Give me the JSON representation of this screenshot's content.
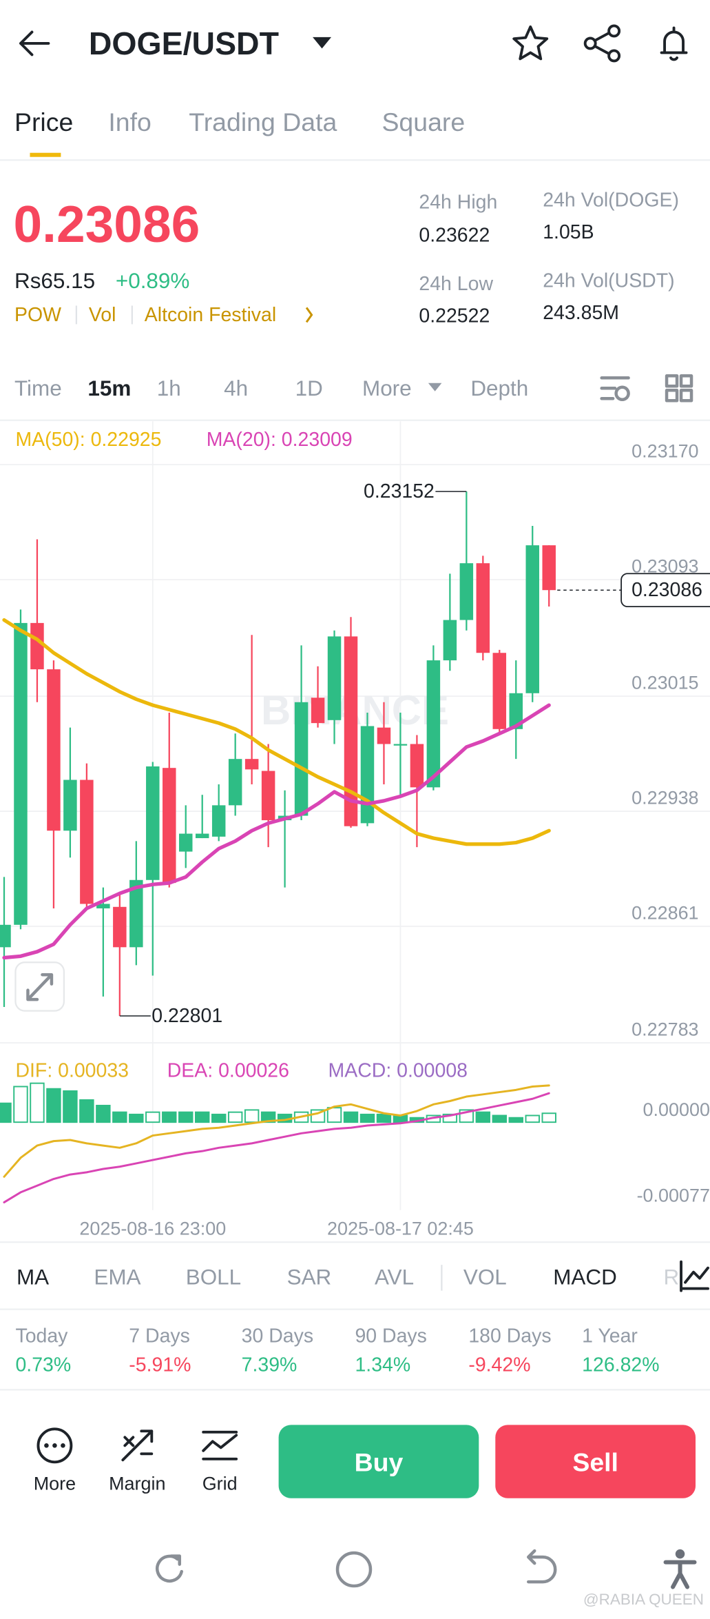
{
  "header": {
    "title": "DOGE/USDT"
  },
  "tabs": [
    {
      "label": "Price",
      "active": true
    },
    {
      "label": "Info",
      "active": false
    },
    {
      "label": "Trading Data",
      "active": false
    },
    {
      "label": "Square",
      "active": false
    }
  ],
  "price": {
    "last": 0.23086,
    "local": "Rs65.15",
    "change": "+0.89%",
    "tags": [
      "POW",
      "Vol",
      "Altcoin Festival"
    ]
  },
  "stats": [
    {
      "label": "24h High",
      "value": 0.23622
    },
    {
      "label": "24h Low",
      "value": 0.22522
    },
    {
      "label": "24h Vol(DOGE)",
      "value": "1.05B"
    },
    {
      "label": "24h Vol(USDT)",
      "value": "243.85M"
    }
  ],
  "intervals": [
    {
      "label": "Time",
      "active": false
    },
    {
      "label": "15m",
      "active": true
    },
    {
      "label": "1h",
      "active": false
    },
    {
      "label": "4h",
      "active": false
    },
    {
      "label": "1D",
      "active": false
    },
    {
      "label": "More",
      "active": false
    },
    {
      "label": "Depth",
      "active": false
    }
  ],
  "chart_watermark": "BINANCE",
  "chart_data": [
    {
      "type": "candlestick",
      "up_color": "#2ebd85",
      "down_color": "#f6465d",
      "grid": true,
      "x": [
        null,
        null,
        null,
        null,
        null,
        null,
        null,
        null,
        null,
        "2025-08-16 23:00",
        null,
        null,
        null,
        null,
        null,
        null,
        null,
        null,
        null,
        null,
        null,
        null,
        null,
        null,
        "2025-08-17 02:45",
        null,
        null,
        null,
        null,
        null,
        null,
        null,
        null,
        null
      ],
      "ylim": [
        0.22783,
        0.23199
      ],
      "yticks": [
        {
          "value": 0.2317,
          "label": "0.23170"
        },
        {
          "value": 0.23093,
          "label": "0.23093"
        },
        {
          "value": 0.23015,
          "label": "0.23015"
        },
        {
          "value": 0.22938,
          "label": "0.22938"
        },
        {
          "value": 0.22861,
          "label": "0.22861"
        },
        {
          "value": 0.22783,
          "label": "0.22783"
        }
      ],
      "open": [
        0.22847,
        0.22862,
        0.23064,
        0.23033,
        0.22925,
        0.22959,
        0.22873,
        0.22874,
        0.22847,
        0.22892,
        0.22967,
        0.22911,
        0.2292,
        0.22921,
        0.22942,
        0.22973,
        0.22965,
        0.22932,
        0.22935,
        0.23014,
        0.22999,
        0.23055,
        0.2293,
        0.22994,
        0.22982,
        0.22983,
        0.22954,
        0.23039,
        0.23066,
        0.23104,
        0.23044,
        0.22993,
        0.23017,
        0.23116
      ],
      "high": [
        0.22894,
        0.23073,
        0.2312,
        0.23039,
        0.22994,
        0.2297,
        0.22887,
        0.22883,
        0.22918,
        0.22971,
        0.23004,
        0.22942,
        0.22949,
        0.22956,
        0.2299,
        0.23056,
        0.22983,
        0.22952,
        0.23049,
        0.23035,
        0.23059,
        0.23068,
        0.23004,
        0.23011,
        0.23004,
        0.22989,
        0.23049,
        0.23097,
        0.23152,
        0.23109,
        0.23046,
        0.23039,
        0.23129,
        0.23116
      ],
      "low": [
        0.22807,
        0.22859,
        0.23011,
        0.22873,
        0.22907,
        0.22873,
        0.22814,
        0.22801,
        0.22835,
        0.22828,
        0.22887,
        0.229,
        0.2292,
        0.22918,
        0.22935,
        0.22956,
        0.22914,
        0.22887,
        0.22932,
        0.22994,
        0.22983,
        0.22927,
        0.22928,
        0.22956,
        0.22949,
        0.22914,
        0.22952,
        0.23032,
        0.23059,
        0.23039,
        0.2299,
        0.22973,
        0.23011,
        0.23075
      ],
      "close": [
        0.22862,
        0.23064,
        0.23033,
        0.22925,
        0.22959,
        0.22876,
        0.22876,
        0.22847,
        0.22892,
        0.22968,
        0.2289,
        0.22923,
        0.22923,
        0.22942,
        0.22973,
        0.22966,
        0.22932,
        0.22935,
        0.23011,
        0.22997,
        0.23055,
        0.22928,
        0.22995,
        0.22983,
        0.22983,
        0.22954,
        0.23039,
        0.23066,
        0.23104,
        0.23044,
        0.22993,
        0.23017,
        0.23116,
        0.23086
      ],
      "series": [
        {
          "name": "MA(50): 0.22925",
          "color": "#ecb80c",
          "values": [
            0.23066,
            0.23059,
            0.23053,
            0.23044,
            0.23037,
            0.2303,
            0.23024,
            0.23018,
            0.23013,
            0.23009,
            0.23006,
            0.23003,
            0.23,
            0.22997,
            0.22993,
            0.22987,
            0.22979,
            0.22973,
            0.22967,
            0.22961,
            0.22956,
            0.22951,
            0.22945,
            0.22937,
            0.2293,
            0.22923,
            0.2292,
            0.22918,
            0.22916,
            0.22916,
            0.22916,
            0.22917,
            0.2292,
            0.22925
          ]
        },
        {
          "name": "MA(20): 0.23009",
          "color": "#d944b4",
          "values": [
            0.2284,
            0.22841,
            0.22844,
            0.22849,
            0.22862,
            0.22873,
            0.22878,
            0.22883,
            0.22887,
            0.22889,
            0.2289,
            0.22894,
            0.22904,
            0.22913,
            0.22918,
            0.22925,
            0.2293,
            0.22933,
            0.22936,
            0.22943,
            0.22951,
            0.22945,
            0.22943,
            0.22945,
            0.22948,
            0.22952,
            0.22961,
            0.22971,
            0.22981,
            0.22985,
            0.2299,
            0.22995,
            0.23002,
            0.23009
          ]
        }
      ]
    },
    {
      "type": "macd",
      "grid": false,
      "ylim": [
        -0.00079,
        0.00062
      ],
      "yticks": [
        {
          "value": 0,
          "label": "0.00000"
        },
        {
          "value": -0.00077,
          "label": "-0.00077"
        }
      ],
      "series": [
        {
          "name": "DIF: 0.00033",
          "color": "#e5b422",
          "kind": "line",
          "values": [
            -0.00049,
            -0.00032,
            -0.00021,
            -0.00017,
            -0.00016,
            -0.00019,
            -0.00021,
            -0.00023,
            -0.00019,
            -0.00012,
            -0.0001,
            -8e-05,
            -6e-05,
            -5e-05,
            -3e-05,
            -1e-05,
            1e-05,
            2e-05,
            5e-05,
            8e-05,
            0.00014,
            0.00016,
            0.00012,
            8e-05,
            6e-05,
            0.0001,
            0.00016,
            0.00019,
            0.00023,
            0.00025,
            0.00027,
            0.00029,
            0.00032,
            0.00033
          ]
        },
        {
          "name": "DEA: 0.00026",
          "color": "#d944b4",
          "kind": "line",
          "values": [
            -0.00072,
            -0.00063,
            -0.00057,
            -0.00051,
            -0.00047,
            -0.00045,
            -0.00042,
            -0.0004,
            -0.00037,
            -0.00034,
            -0.00031,
            -0.00028,
            -0.00026,
            -0.00023,
            -0.00021,
            -0.00019,
            -0.00016,
            -0.00013,
            -0.0001,
            -8e-05,
            -6e-05,
            -5e-05,
            -3e-05,
            -2e-05,
            -1e-05,
            1e-05,
            4e-05,
            6e-05,
            9e-05,
            0.00012,
            0.00015,
            0.00018,
            0.00021,
            0.00026
          ]
        },
        {
          "name": "MACD: 0.00008",
          "color": "#9b6cc4",
          "kind": "bar",
          "up_color": "#2ebd85",
          "down_color": "#f6465d",
          "values": [
            0.00017,
            0.00032,
            0.00035,
            0.0003,
            0.00028,
            0.0002,
            0.00015,
            9e-05,
            7e-05,
            9e-05,
            9e-05,
            9e-05,
            9e-05,
            7e-05,
            9e-05,
            0.00011,
            9e-05,
            7e-05,
            9e-05,
            0.00011,
            0.00013,
            9e-05,
            7e-05,
            7e-05,
            6e-05,
            4e-05,
            6e-05,
            7e-05,
            0.00011,
            9e-05,
            6e-05,
            4e-05,
            6e-05,
            8e-05
          ]
        }
      ]
    }
  ],
  "indicators": [
    {
      "label": "MA",
      "active": true
    },
    {
      "label": "EMA",
      "active": false
    },
    {
      "label": "BOLL",
      "active": false
    },
    {
      "label": "SAR",
      "active": false
    },
    {
      "label": "AVL",
      "active": false
    },
    {
      "label": "VOL",
      "active": false
    },
    {
      "label": "MACD",
      "active": true
    },
    {
      "label": "R",
      "active": false
    }
  ],
  "performance": [
    {
      "label": "Today",
      "value": "0.73%"
    },
    {
      "label": "7 Days",
      "value": "-5.91%"
    },
    {
      "label": "30 Days",
      "value": "7.39%"
    },
    {
      "label": "90 Days",
      "value": "1.34%"
    },
    {
      "label": "180 Days",
      "value": "-9.42%"
    },
    {
      "label": "1 Year",
      "value": "126.82%"
    }
  ],
  "actions": [
    "More",
    "Margin",
    "Grid"
  ],
  "buy": "Buy",
  "sell": "Sell",
  "watermark": "@RABIA QUEEN"
}
